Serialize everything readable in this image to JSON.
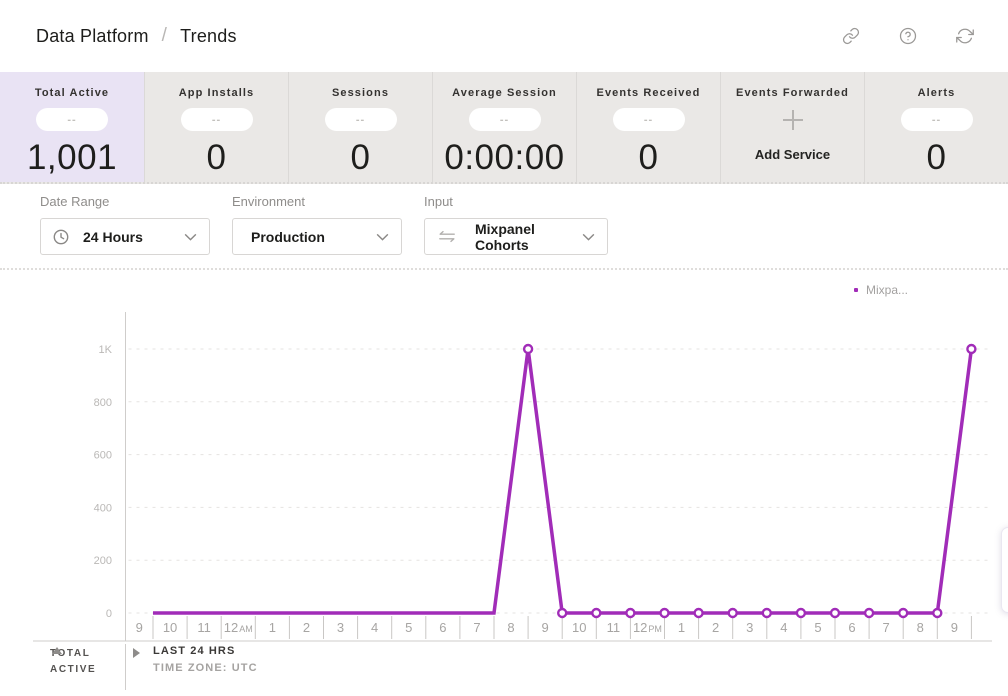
{
  "header": {
    "breadcrumb": {
      "section": "Data Platform",
      "separator": "/",
      "page": "Trends"
    }
  },
  "stats": {
    "cards": [
      {
        "label": "Total Active",
        "pill": "--",
        "value": "1,001"
      },
      {
        "label": "App Installs",
        "pill": "--",
        "value": "0"
      },
      {
        "label": "Sessions",
        "pill": "--",
        "value": "0"
      },
      {
        "label": "Average Session",
        "pill": "--",
        "value": "0:00:00"
      },
      {
        "label": "Events Received",
        "pill": "--",
        "value": "0"
      },
      {
        "label": "Events Forwarded",
        "action": "Add Service"
      },
      {
        "label": "Alerts",
        "pill": "--",
        "value": "0"
      }
    ]
  },
  "filters": {
    "date_range": {
      "label": "Date Range",
      "value": "24 Hours"
    },
    "environment": {
      "label": "Environment",
      "value": "Production"
    },
    "input": {
      "label": "Input",
      "value": "Mixpanel Cohorts"
    }
  },
  "legend": {
    "series_label": "Mixpa...",
    "color": "#a12cb8"
  },
  "colors": {
    "accent": "#a12cb8",
    "selected_card_bg": "#e9e3f4",
    "card_bg": "#eae8e6"
  },
  "chart_data": {
    "type": "line",
    "title": "",
    "xlabel": "",
    "ylabel": "",
    "x_labels": [
      "9",
      "10",
      "11",
      "12 AM",
      "1",
      "2",
      "3",
      "4",
      "5",
      "6",
      "7",
      "8",
      "9",
      "10",
      "11",
      "12 PM",
      "1",
      "2",
      "3",
      "4",
      "5",
      "6",
      "7",
      "8",
      "9"
    ],
    "y_ticks": [
      {
        "label": "0",
        "value": 0
      },
      {
        "label": "200",
        "value": 200
      },
      {
        "label": "400",
        "value": 400
      },
      {
        "label": "600",
        "value": 600
      },
      {
        "label": "800",
        "value": 800
      },
      {
        "label": "1K",
        "value": 1000
      }
    ],
    "ylim": [
      0,
      1000
    ],
    "grid": "dashed-horizontal",
    "legend_position": "top-right",
    "series": [
      {
        "name": "Mixpanel Cohorts",
        "color": "#a12cb8",
        "values": [
          0,
          0,
          0,
          0,
          0,
          0,
          0,
          0,
          0,
          0,
          0,
          1000,
          0,
          0,
          0,
          0,
          0,
          0,
          0,
          0,
          0,
          0,
          0,
          0,
          1000
        ],
        "marker_start_index": 11
      }
    ]
  },
  "chart_footer": {
    "metric_line1": "TOTAL",
    "metric_line2": "ACTIVE",
    "range_label": "LAST 24 HRS",
    "timezone_label": "TIME ZONE: UTC"
  }
}
